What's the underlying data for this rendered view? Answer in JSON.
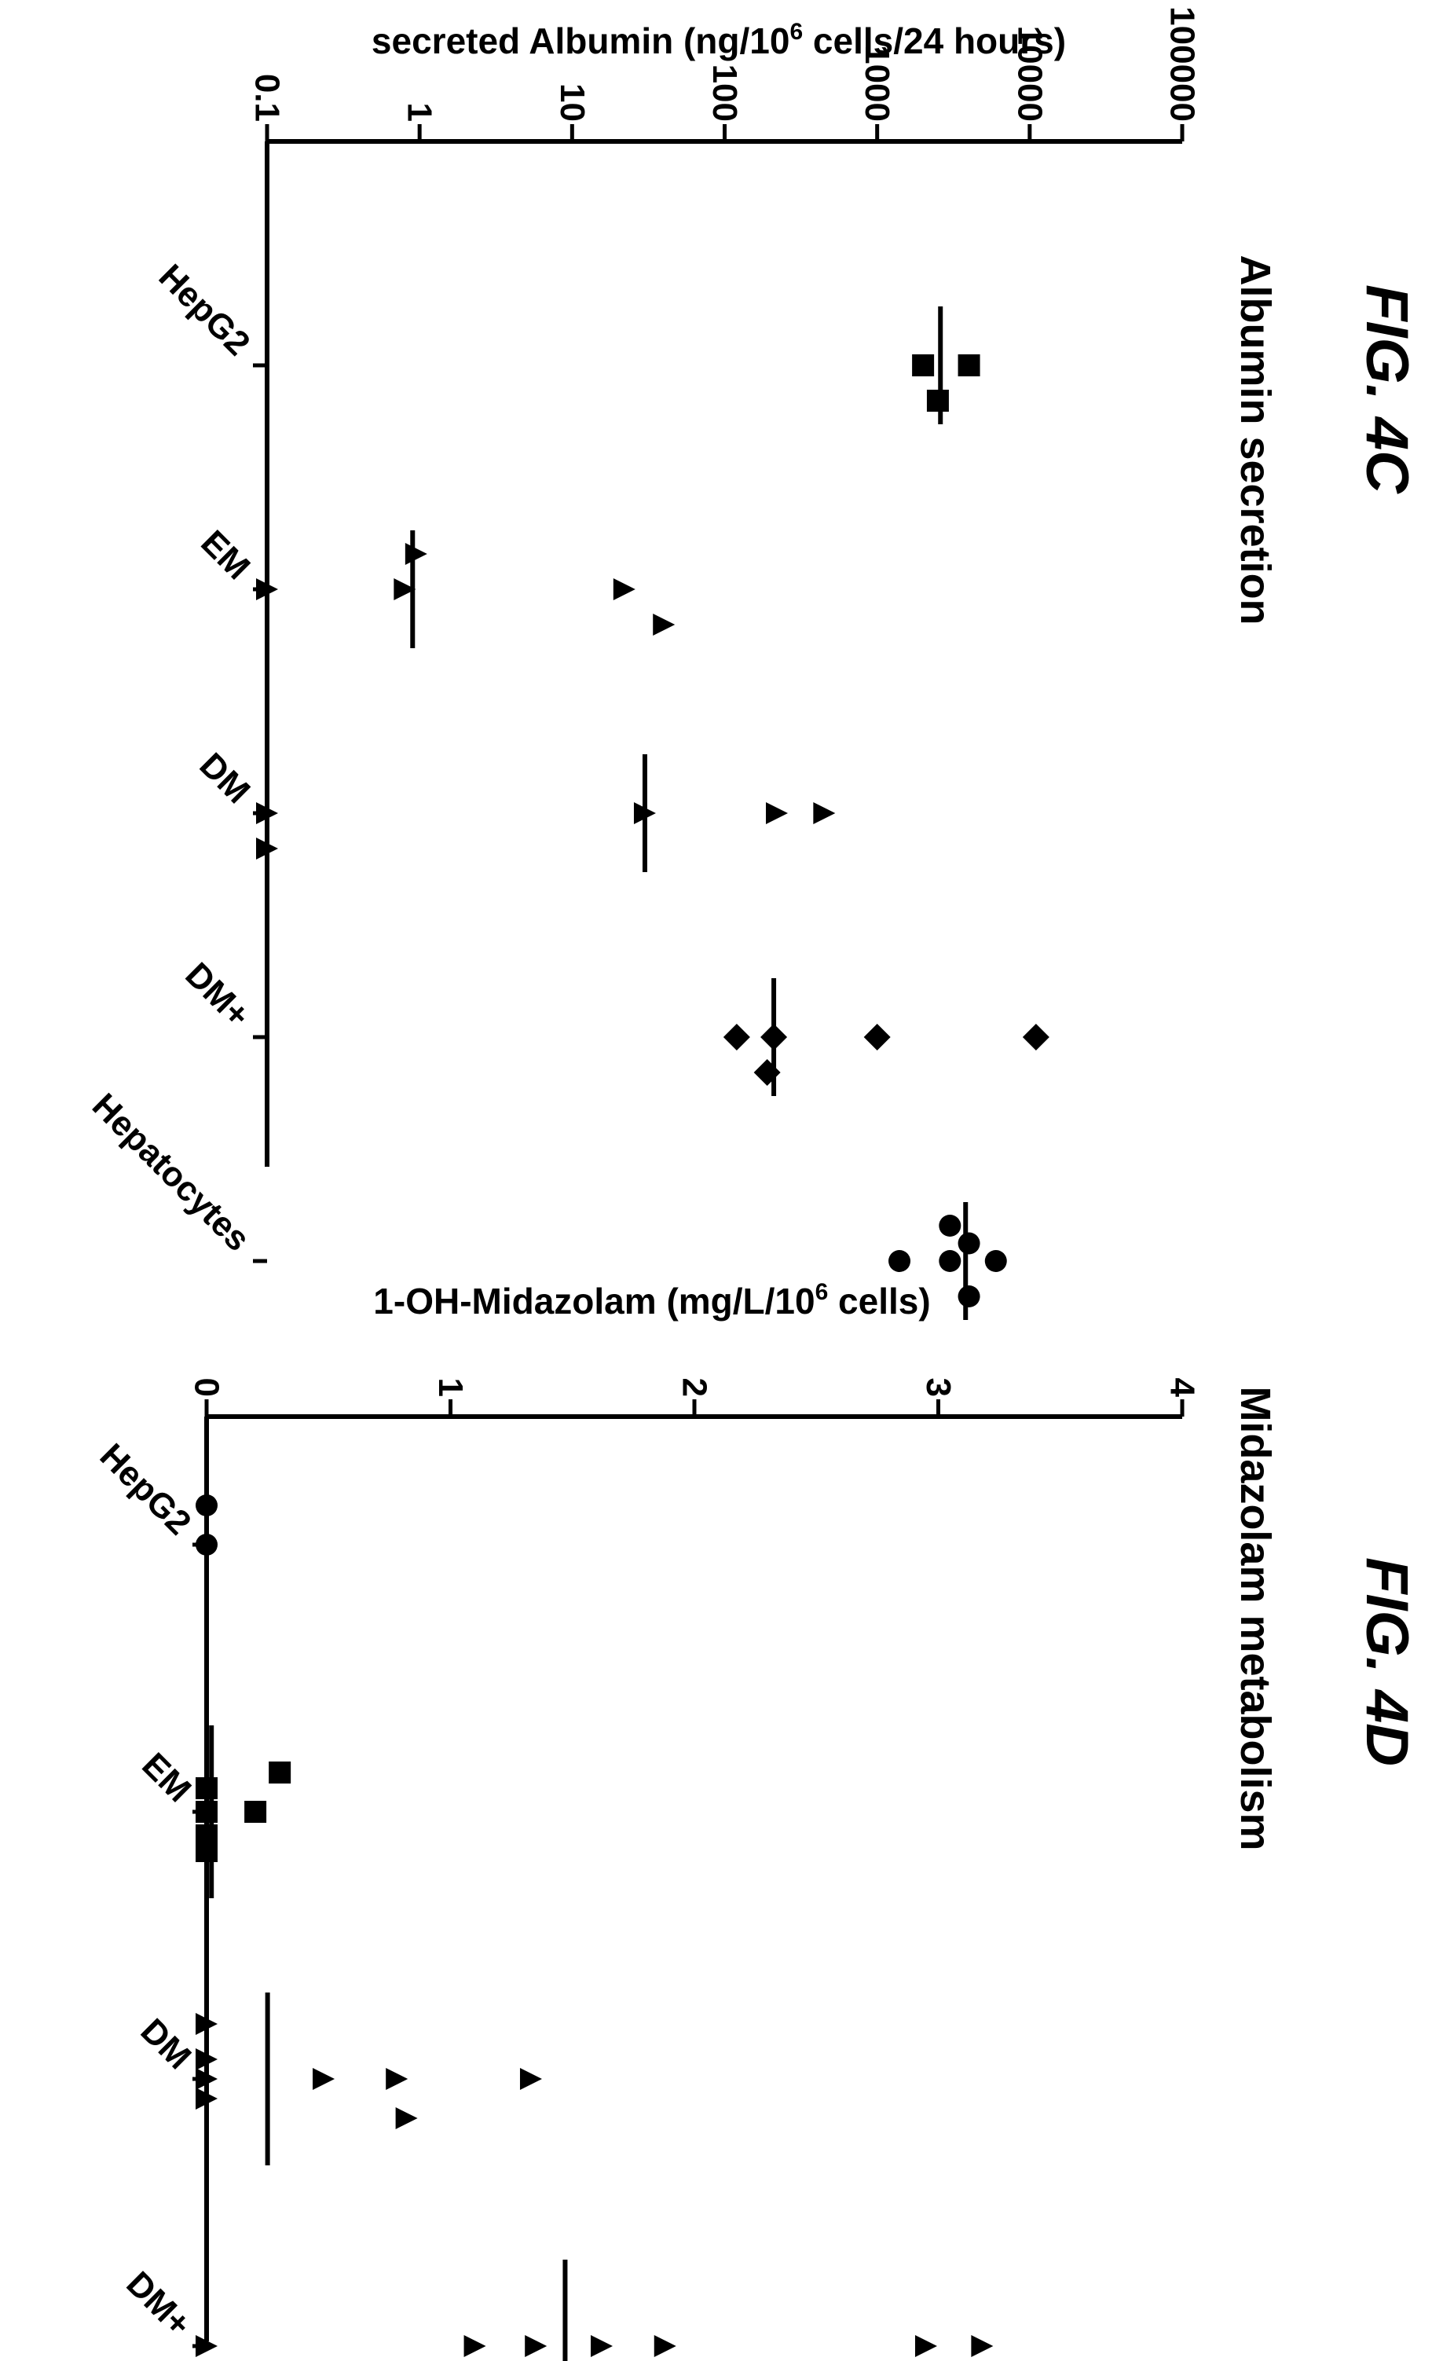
{
  "chart_data": [
    {
      "type": "scatter",
      "figure_label": "FIG. 4C",
      "title": "Albumin secretion",
      "ylabel_pre": "secreted Albumin (ng/10",
      "ylabel_sup": "6",
      "ylabel_post": " cells/24 hours)",
      "yscale": "log",
      "ylim": [
        0.1,
        100000
      ],
      "yticks": [
        "0.1",
        "1",
        "10",
        "100",
        "1000",
        "10000",
        "100000"
      ],
      "categories": [
        "HepG2",
        "EM",
        "DM",
        "DM+",
        "Hepatocytes"
      ],
      "marker_colors": {
        "points": "#000000"
      },
      "series": [
        {
          "category": "HepG2",
          "marker": "square",
          "mean": 2600,
          "points": [
            {
              "y": 2000,
              "j": 0
            },
            {
              "y": 4000,
              "j": 0
            },
            {
              "y": 2500,
              "j": 1
            }
          ]
        },
        {
          "category": "EM",
          "marker": "triangle",
          "mean": 0.9,
          "points": [
            {
              "y": 0.95,
              "j": -1
            },
            {
              "y": 0.8,
              "j": 0
            },
            {
              "y": 0.1,
              "j": 0
            },
            {
              "y": 22,
              "j": 0
            },
            {
              "y": 40,
              "j": 1
            }
          ]
        },
        {
          "category": "DM",
          "marker": "triangle",
          "mean": 30,
          "points": [
            {
              "y": 0.1,
              "j": 0
            },
            {
              "y": 30,
              "j": 0
            },
            {
              "y": 220,
              "j": 0
            },
            {
              "y": 450,
              "j": 0
            },
            {
              "y": 0.1,
              "j": 1
            }
          ]
        },
        {
          "category": "DM+",
          "marker": "diamond",
          "mean": 210,
          "points": [
            {
              "y": 120,
              "j": 0
            },
            {
              "y": 210,
              "j": 0
            },
            {
              "y": 1000,
              "j": 0
            },
            {
              "y": 11000,
              "j": 0
            },
            {
              "y": 190,
              "j": 1
            }
          ]
        },
        {
          "category": "Hepatocytes",
          "marker": "circle",
          "mean": 3800,
          "points": [
            {
              "y": 3000,
              "j": -1
            },
            {
              "y": 1400,
              "j": 0
            },
            {
              "y": 3000,
              "j": 0
            },
            {
              "y": 6000,
              "j": 0
            },
            {
              "y": 4000,
              "j": -0.5
            },
            {
              "y": 4000,
              "j": 1
            }
          ]
        }
      ]
    },
    {
      "type": "scatter",
      "figure_label": "FIG. 4D",
      "title": "Midazolam metabolism",
      "ylabel_pre": "1-OH-Midazolam (mg/L/10",
      "ylabel_sup": "6",
      "ylabel_post": " cells)",
      "yscale": "linear",
      "ylim": [
        0,
        4
      ],
      "yticks": [
        "0",
        "1",
        "2",
        "3",
        "4"
      ],
      "categories": [
        "HepG2",
        "EM",
        "DM",
        "DM+"
      ],
      "series": [
        {
          "category": "HepG2",
          "marker": "circle",
          "mean": null,
          "points": [
            {
              "y": 0,
              "j": -1
            },
            {
              "y": 0,
              "j": 0
            }
          ]
        },
        {
          "category": "EM",
          "marker": "square",
          "mean": 0.02,
          "points": [
            {
              "y": 0.3,
              "j": -1
            },
            {
              "y": 0.2,
              "j": 0
            },
            {
              "y": 0,
              "j": -0.6
            },
            {
              "y": 0,
              "j": 0
            },
            {
              "y": 0,
              "j": 0.6
            },
            {
              "y": 0,
              "j": 1
            }
          ]
        },
        {
          "category": "DM",
          "marker": "triangle",
          "mean": 0.25,
          "points": [
            {
              "y": 0,
              "j": -1.4
            },
            {
              "y": 0,
              "j": -0.5
            },
            {
              "y": 0,
              "j": 0
            },
            {
              "y": 0,
              "j": 0.5
            },
            {
              "y": 0.48,
              "j": 0
            },
            {
              "y": 0.78,
              "j": 0
            },
            {
              "y": 1.33,
              "j": 0
            },
            {
              "y": 0.82,
              "j": 1
            }
          ]
        },
        {
          "category": "DM+",
          "marker": "triangle",
          "mean": 1.47,
          "points": [
            {
              "y": 0,
              "j": 0
            },
            {
              "y": 0,
              "j": 1
            },
            {
              "y": 1.1,
              "j": 0
            },
            {
              "y": 1.35,
              "j": 0
            },
            {
              "y": 1.62,
              "j": 0
            },
            {
              "y": 1.88,
              "j": 0
            },
            {
              "y": 2.95,
              "j": 0
            },
            {
              "y": 3.18,
              "j": 0
            }
          ]
        }
      ]
    }
  ]
}
